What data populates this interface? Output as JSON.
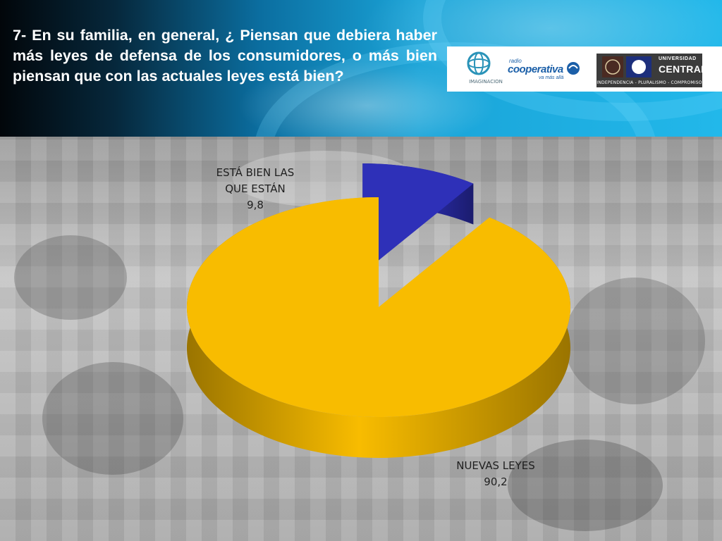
{
  "header": {
    "question": "7- En su familia, en general, ¿ Piensan que debiera haber más  leyes de defensa de los consumidores, o más bien piensan que con  las actuales leyes está bien?"
  },
  "logos": {
    "imaginacion_text": "IMAGINACION",
    "cooperativa_radio": "radio",
    "cooperativa_name": "cooperativa",
    "cooperativa_tagline": "va más allá",
    "universidad_line1": "UNIVERSIDAD",
    "universidad_line2": "CENTRAL",
    "universidad_tagline": "INDEPENDENCIA - PLURALISMO - COMPROMISO"
  },
  "chart_data": {
    "type": "pie",
    "title": "",
    "slices": [
      {
        "label_lines": [
          "ESTÁ BIEN LAS",
          "QUE ESTÁN"
        ],
        "value": 9.8,
        "display_value": "9,8",
        "color": "#2e30b8",
        "side_color": "#1b1c6e"
      },
      {
        "label_lines": [
          "NUEVAS LEYES"
        ],
        "value": 90.2,
        "display_value": "90,2",
        "color": "#f8bc00",
        "side_color": "#9a7400"
      }
    ]
  }
}
